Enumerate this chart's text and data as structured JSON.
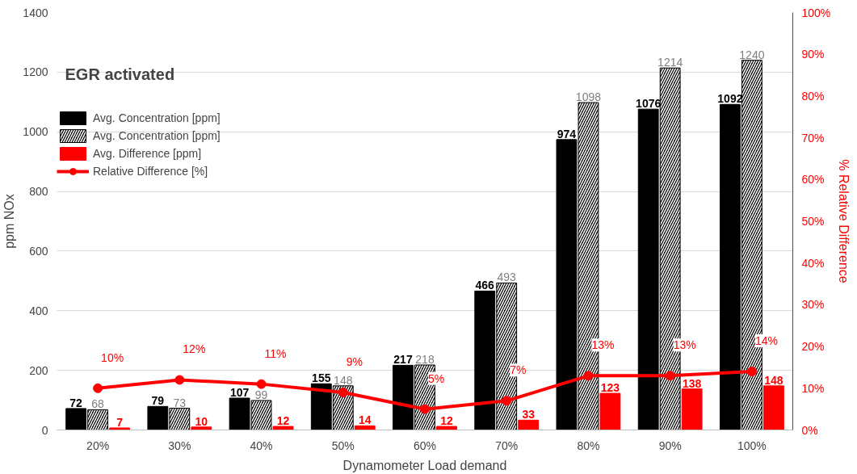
{
  "chart_data": {
    "type": "bar",
    "title": "EGR activated",
    "xlabel": "Dynamometer Load demand",
    "ylabel": "ppm NOx",
    "y2label": "% Relative Difference",
    "categories": [
      "20%",
      "30%",
      "40%",
      "50%",
      "60%",
      "70%",
      "80%",
      "90%",
      "100%"
    ],
    "series": [
      {
        "name": "Avg. Concentration [ppm]",
        "color": "#000000",
        "values": [
          72,
          79,
          107,
          155,
          217,
          466,
          974,
          1076,
          1092
        ]
      },
      {
        "name": "Avg. Concentration [ppm]",
        "color": "#000000",
        "values": [
          68,
          73,
          99,
          148,
          218,
          493,
          1098,
          1214,
          1240
        ]
      },
      {
        "name": "Avg. Difference [ppm]",
        "color": "#ff0000",
        "values": [
          7,
          10,
          12,
          14,
          12,
          33,
          123,
          138,
          148
        ]
      },
      {
        "name": "Relative Difference [%]",
        "color": "#ff0000",
        "type": "line",
        "axis": "y2",
        "marker": "circle",
        "values": [
          10,
          12,
          11,
          9,
          5,
          7,
          13,
          13,
          14
        ],
        "value_labels": [
          "10%",
          "12%",
          "11%",
          "9%",
          "5%",
          "7%",
          "13%",
          "13%",
          "14%"
        ]
      }
    ],
    "data_labels": true,
    "ylim": [
      0,
      1400
    ],
    "yticks": [
      0,
      200,
      400,
      600,
      800,
      1000,
      1200,
      1400
    ],
    "y2lim": [
      0,
      100
    ],
    "y2ticks": [
      {
        "value": 0,
        "label": "0%"
      },
      {
        "value": 10,
        "label": "10%"
      },
      {
        "value": 20,
        "label": "20%"
      },
      {
        "value": 30,
        "label": "30%"
      },
      {
        "value": 40,
        "label": "40%"
      },
      {
        "value": 50,
        "label": "50%"
      },
      {
        "value": 60,
        "label": "60%"
      },
      {
        "value": 70,
        "label": "70%"
      },
      {
        "value": 80,
        "label": "80%"
      },
      {
        "value": 90,
        "label": "90%"
      },
      {
        "value": 100,
        "label": "100%"
      }
    ],
    "grid": "y",
    "legend": "top left"
  }
}
